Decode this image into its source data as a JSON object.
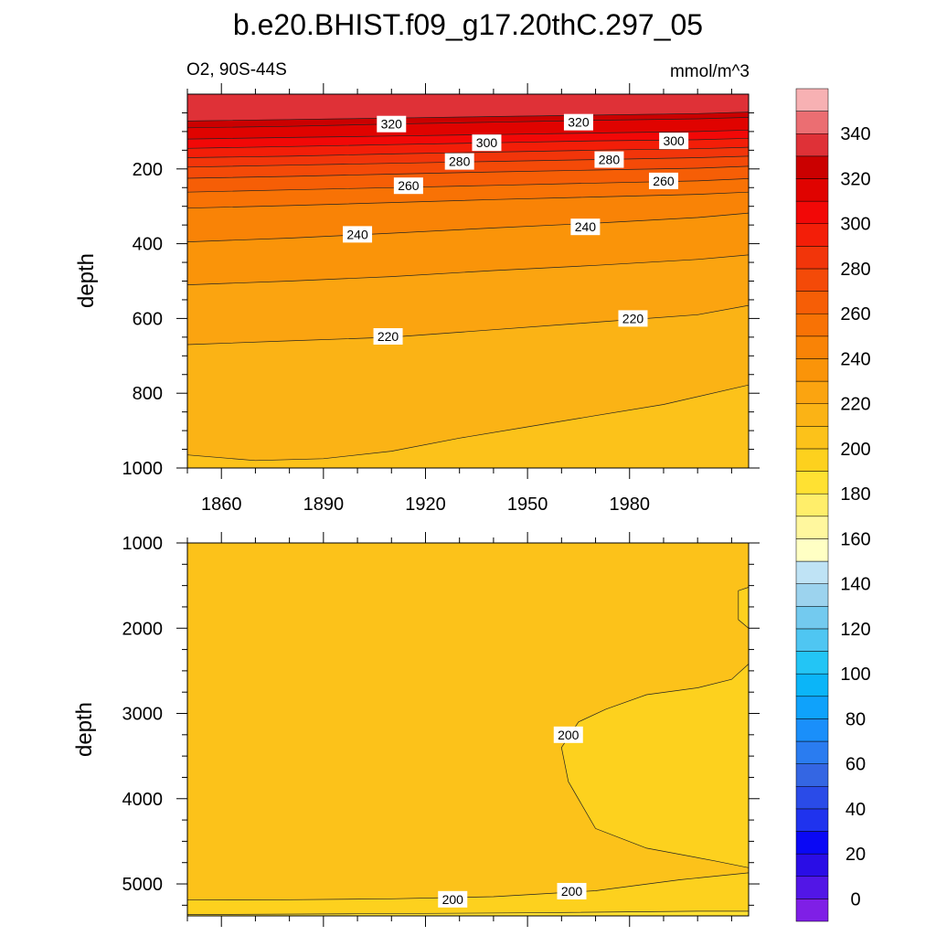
{
  "chart_data": {
    "type": "contour",
    "title": "b.e20.BHIST.f09_g17.20thC.297_05",
    "left_label": "O2, 90S-44S",
    "right_label": "mmol/m^3",
    "ylabel": "depth",
    "grid": false,
    "panels": [
      {
        "name": "upper",
        "xlim": [
          1850,
          2015
        ],
        "ylim": [
          1000,
          0
        ],
        "xticks": [
          1860,
          1890,
          1920,
          1950,
          1980
        ],
        "yticks": [
          200,
          400,
          600,
          800,
          1000
        ],
        "contours": [
          {
            "level": 330,
            "x": [
              1850,
              1880,
              1910,
              1940,
              1970,
              2000,
              2015
            ],
            "y": [
              72,
              68,
              64,
              60,
              56,
              52,
              48
            ]
          },
          {
            "level": 320,
            "x": [
              1850,
              1880,
              1910,
              1940,
              1970,
              2000,
              2015
            ],
            "y": [
              90,
              86,
              80,
              75,
              70,
              66,
              62
            ]
          },
          {
            "level": 310,
            "x": [
              1850,
              1880,
              1910,
              1940,
              1970,
              2000,
              2015
            ],
            "y": [
              120,
              116,
              112,
              108,
              104,
              100,
              96
            ]
          },
          {
            "level": 300,
            "x": [
              1850,
              1880,
              1910,
              1940,
              1970,
              2000,
              2015
            ],
            "y": [
              145,
              140,
              135,
              130,
              125,
              122,
              118
            ]
          },
          {
            "level": 290,
            "x": [
              1850,
              1880,
              1910,
              1940,
              1970,
              2000,
              2015
            ],
            "y": [
              170,
              166,
              160,
              155,
              150,
              146,
              142
            ]
          },
          {
            "level": 280,
            "x": [
              1850,
              1880,
              1910,
              1940,
              1970,
              2000,
              2015
            ],
            "y": [
              195,
              190,
              185,
              180,
              175,
              170,
              166
            ]
          },
          {
            "level": 270,
            "x": [
              1850,
              1880,
              1910,
              1940,
              1970,
              2000,
              2015
            ],
            "y": [
              225,
              220,
              214,
              208,
              203,
              198,
              193
            ]
          },
          {
            "level": 260,
            "x": [
              1850,
              1880,
              1910,
              1940,
              1970,
              2000,
              2015
            ],
            "y": [
              262,
              256,
              250,
              244,
              238,
              232,
              226
            ]
          },
          {
            "level": 250,
            "x": [
              1850,
              1880,
              1910,
              1940,
              1970,
              2000,
              2015
            ],
            "y": [
              305,
              298,
              290,
              282,
              275,
              268,
              262
            ]
          },
          {
            "level": 240,
            "x": [
              1850,
              1880,
              1910,
              1940,
              1970,
              2000,
              2015
            ],
            "y": [
              395,
              385,
              372,
              358,
              345,
              330,
              318
            ]
          },
          {
            "level": 230,
            "x": [
              1850,
              1880,
              1910,
              1940,
              1970,
              2000,
              2015
            ],
            "y": [
              510,
              500,
              488,
              472,
              458,
              442,
              430
            ]
          },
          {
            "level": 220,
            "x": [
              1850,
              1880,
              1910,
              1940,
              1970,
              2000,
              2015
            ],
            "y": [
              670,
              660,
              650,
              630,
              610,
              590,
              565
            ]
          },
          {
            "level": 210,
            "x": [
              1850,
              1870,
              1890,
              1910,
              1930,
              1950,
              1970,
              1990,
              2015
            ],
            "y": [
              965,
              980,
              975,
              955,
              920,
              890,
              860,
              830,
              778
            ]
          }
        ],
        "labels": [
          {
            "text": "320",
            "x": 1910,
            "y": 80
          },
          {
            "text": "320",
            "x": 1965,
            "y": 75
          },
          {
            "text": "300",
            "x": 1938,
            "y": 130
          },
          {
            "text": "300",
            "x": 1993,
            "y": 125
          },
          {
            "text": "280",
            "x": 1930,
            "y": 180
          },
          {
            "text": "280",
            "x": 1974,
            "y": 175
          },
          {
            "text": "260",
            "x": 1915,
            "y": 245
          },
          {
            "text": "260",
            "x": 1990,
            "y": 232
          },
          {
            "text": "240",
            "x": 1900,
            "y": 375
          },
          {
            "text": "240",
            "x": 1967,
            "y": 355
          },
          {
            "text": "220",
            "x": 1909,
            "y": 648
          },
          {
            "text": "220",
            "x": 1981,
            "y": 600
          }
        ]
      },
      {
        "name": "lower",
        "xlim": [
          1850,
          2015
        ],
        "ylim": [
          5375,
          1000
        ],
        "xticks": [
          1860,
          1890,
          1920,
          1950,
          1980
        ],
        "yticks": [
          1000,
          2000,
          3000,
          4000,
          5000
        ],
        "contours": [
          {
            "level": 200,
            "x": [
              2015,
              2012,
              2012,
              2015
            ],
            "y": [
              1520,
              1560,
              1900,
              2000
            ]
          },
          {
            "level": 200,
            "x": [
              2015,
              2010,
              2000,
              1985,
              1973,
              1965,
              1960,
              1962,
              1970,
              1985,
              2005,
              2015
            ],
            "y": [
              2420,
              2600,
              2700,
              2780,
              2950,
              3100,
              3400,
              3800,
              4350,
              4580,
              4730,
              4810
            ]
          },
          {
            "level": 200,
            "x": [
              1850,
              1880,
              1910,
              1940,
              1970,
              1995,
              2015
            ],
            "y": [
              5190,
              5185,
              5175,
              5150,
              5080,
              4950,
              4870
            ]
          },
          {
            "level": 190,
            "x": [
              1850,
              1900,
              1950,
              2000,
              2015
            ],
            "y": [
              5360,
              5350,
              5340,
              5320,
              5320
            ]
          }
        ],
        "labels": [
          {
            "text": "200",
            "x": 1962,
            "y": 3250
          },
          {
            "text": "200",
            "x": 1928,
            "y": 5180
          },
          {
            "text": "200",
            "x": 1963,
            "y": 5085
          }
        ]
      }
    ],
    "colorbar": {
      "ticks": [
        0,
        20,
        40,
        60,
        80,
        100,
        120,
        140,
        160,
        180,
        200,
        220,
        240,
        260,
        280,
        300,
        320,
        340
      ],
      "levels": [
        -10,
        0,
        10,
        20,
        30,
        40,
        50,
        60,
        70,
        80,
        90,
        100,
        110,
        120,
        130,
        140,
        150,
        160,
        170,
        180,
        190,
        200,
        210,
        220,
        230,
        240,
        250,
        260,
        270,
        280,
        290,
        300,
        310,
        320,
        330,
        340,
        350,
        360
      ],
      "colors": [
        "#7F1FE6",
        "#5216E6",
        "#2A0DE6",
        "#0A08F5",
        "#1F33EE",
        "#2A4BE8",
        "#3466E3",
        "#2A7CF0",
        "#1A8FFA",
        "#0FA2FB",
        "#0BB5F8",
        "#23C5F5",
        "#4FC6F2",
        "#73CAEF",
        "#9CD3EE",
        "#BFE3F5",
        "#FFFFC4",
        "#FFF79E",
        "#FFEE6A",
        "#FFE132",
        "#FDD11E",
        "#FCC21A",
        "#FBB315",
        "#FBA410",
        "#FA9409",
        "#F98306",
        "#F87205",
        "#F65E06",
        "#F44A08",
        "#F2350A",
        "#F31E08",
        "#F20807",
        "#E00300",
        "#CB0000",
        "#DF3137",
        "#EB6E72",
        "#F7B1B3"
      ]
    }
  }
}
